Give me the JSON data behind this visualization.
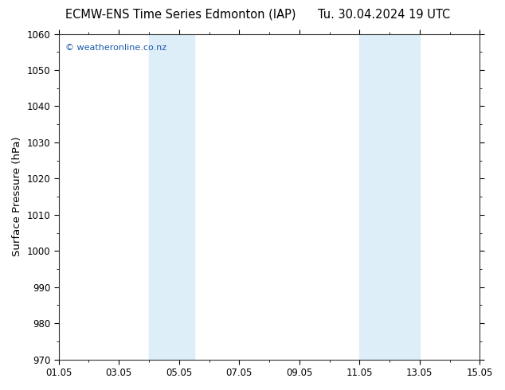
{
  "title_left": "ECMW-ENS Time Series Edmonton (IAP)",
  "title_right": "Tu. 30.04.2024 19 UTC",
  "ylabel": "Surface Pressure (hPa)",
  "ylim": [
    970,
    1060
  ],
  "yticks": [
    970,
    980,
    990,
    1000,
    1010,
    1020,
    1030,
    1040,
    1050,
    1060
  ],
  "xlim_start": 0,
  "xlim_end": 14,
  "xtick_labels": [
    "01.05",
    "03.05",
    "05.05",
    "07.05",
    "09.05",
    "11.05",
    "13.05",
    "15.05"
  ],
  "xtick_positions": [
    0,
    2,
    4,
    6,
    8,
    10,
    12,
    14
  ],
  "shaded_regions": [
    {
      "x_start": 3.0,
      "x_end": 4.5,
      "color": "#ddeef8"
    },
    {
      "x_start": 10.0,
      "x_end": 11.0,
      "color": "#ddeef8"
    },
    {
      "x_start": 11.0,
      "x_end": 12.0,
      "color": "#ddeef8"
    }
  ],
  "bg_color": "#ffffff",
  "plot_bg_color": "#ffffff",
  "border_color": "#555555",
  "watermark_text": "© weatheronline.co.nz",
  "watermark_color": "#1a5aaa",
  "title_fontsize": 10.5,
  "axis_label_fontsize": 9.5,
  "tick_fontsize": 8.5
}
